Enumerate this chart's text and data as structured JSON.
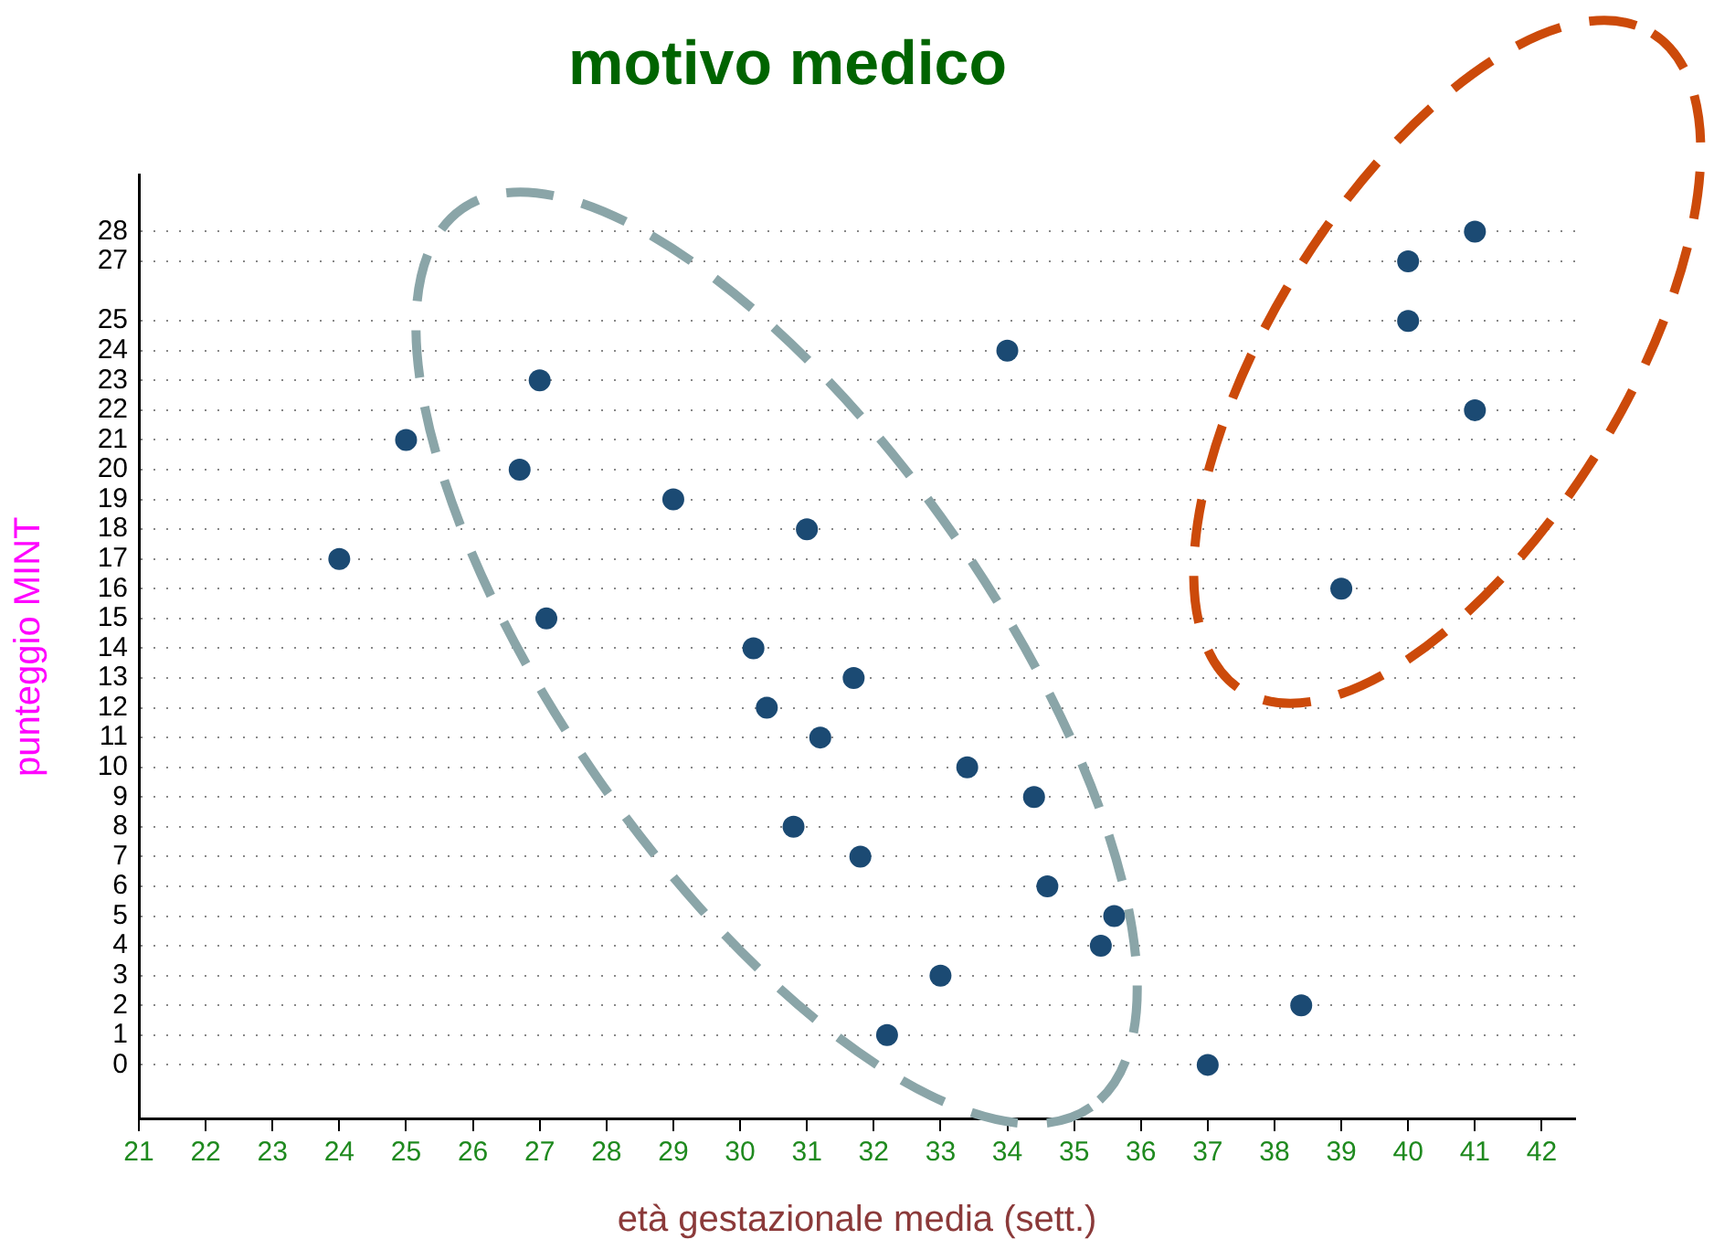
{
  "chart_data": {
    "type": "scatter",
    "title": "motivo medico",
    "xlabel": "età gestazionale media (sett.)",
    "ylabel": "punteggio MINT",
    "x": [
      24,
      25,
      27,
      26.7,
      29,
      27.1,
      31,
      34,
      30.2,
      31.7,
      30.4,
      31.2,
      33.4,
      34.4,
      30.8,
      31.8,
      34.6,
      35.6,
      35.4,
      33,
      32.2,
      38.4,
      37,
      39,
      40,
      40,
      41,
      41
    ],
    "values": [
      17,
      21,
      23,
      20,
      19,
      15,
      18,
      24,
      14,
      13,
      12,
      11,
      10,
      9,
      8,
      7,
      6,
      5,
      4,
      3,
      1,
      2,
      0,
      16,
      25,
      27,
      28,
      22
    ],
    "color": "#1b4a73",
    "marker": "circle",
    "grid": "y",
    "xlim": [
      21,
      42.5
    ],
    "xticks": [
      21,
      22,
      23,
      24,
      25,
      26,
      27,
      28,
      29,
      30,
      31,
      32,
      33,
      34,
      35,
      36,
      37,
      38,
      39,
      40,
      41,
      42
    ],
    "ylim": [
      -1.8,
      29.9
    ],
    "yticks": [
      0,
      1,
      2,
      3,
      4,
      5,
      6,
      7,
      8,
      9,
      10,
      11,
      12,
      13,
      14,
      15,
      16,
      17,
      18,
      19,
      20,
      21,
      22,
      23,
      24,
      25,
      27,
      28
    ]
  }
}
